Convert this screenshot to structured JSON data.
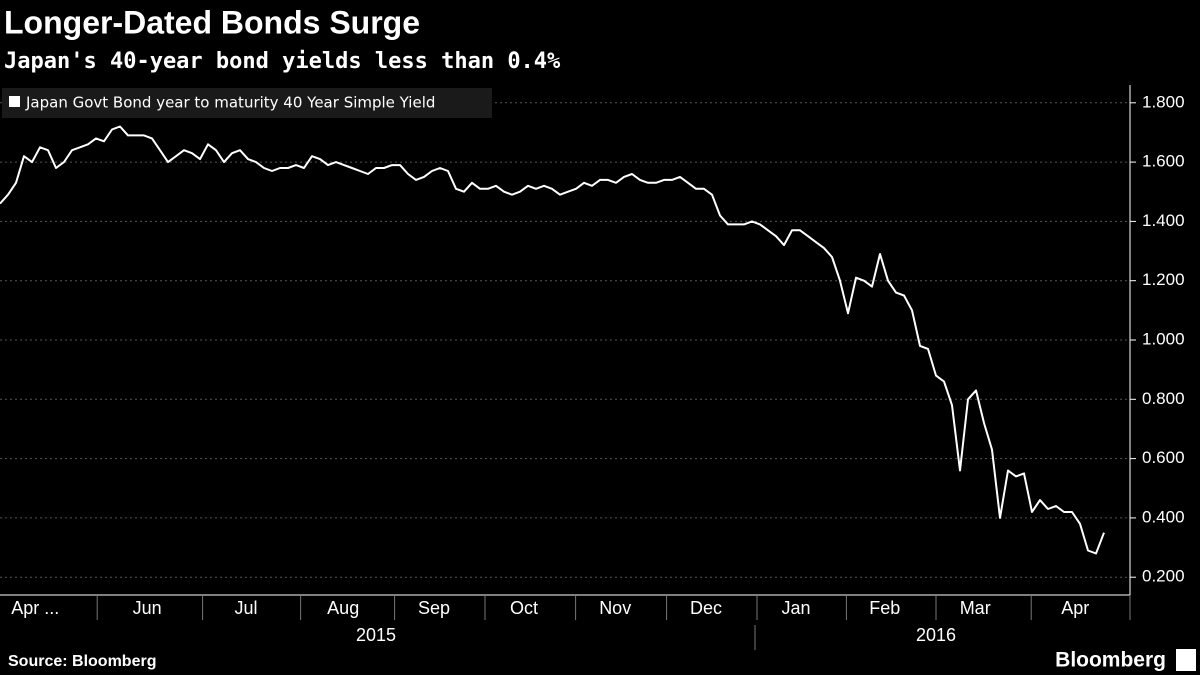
{
  "chart_data": {
    "type": "line",
    "title": "Longer-Dated Bonds Surge",
    "subtitle": "Japan's 40-year bond yields less than 0.4%",
    "source": "Source: Bloomberg",
    "brand": "Bloomberg",
    "legend": "top-left",
    "grid": true,
    "ylim": [
      0.14,
      1.86
    ],
    "yticks": [
      {
        "value": 0.2,
        "label": "0.200"
      },
      {
        "value": 0.4,
        "label": "0.400"
      },
      {
        "value": 0.6,
        "label": "0.600"
      },
      {
        "value": 0.8,
        "label": "0.800"
      },
      {
        "value": 1.0,
        "label": "1.000"
      },
      {
        "value": 1.2,
        "label": "1.200"
      },
      {
        "value": 1.4,
        "label": "1.400"
      },
      {
        "value": 1.6,
        "label": "1.600"
      },
      {
        "value": 1.8,
        "label": "1.800"
      }
    ],
    "xlim": [
      0,
      141.25
    ],
    "xticks": [
      {
        "value": 4.4,
        "label": "Apr ..."
      },
      {
        "value": 18.4,
        "label": "Jun"
      },
      {
        "value": 30.75,
        "label": "Jul"
      },
      {
        "value": 42.9,
        "label": "Aug"
      },
      {
        "value": 54.25,
        "label": "Sep"
      },
      {
        "value": 65.5,
        "label": "Oct"
      },
      {
        "value": 76.9,
        "label": "Nov"
      },
      {
        "value": 88.25,
        "label": "Dec"
      },
      {
        "value": 99.5,
        "label": "Jan"
      },
      {
        "value": 110.6,
        "label": "Feb"
      },
      {
        "value": 121.9,
        "label": "Mar"
      },
      {
        "value": 134.4,
        "label": "Apr"
      }
    ],
    "years": [
      {
        "value": 47,
        "label": "2015"
      },
      {
        "value": 117,
        "label": "2016"
      }
    ],
    "series": [
      {
        "name": "Japan Govt Bond year to maturity 40 Year Simple Yield",
        "color": "#ffffff",
        "values": [
          1.46,
          1.49,
          1.53,
          1.62,
          1.6,
          1.65,
          1.64,
          1.58,
          1.6,
          1.64,
          1.65,
          1.66,
          1.68,
          1.67,
          1.71,
          1.72,
          1.69,
          1.69,
          1.69,
          1.68,
          1.64,
          1.6,
          1.62,
          1.64,
          1.63,
          1.61,
          1.66,
          1.64,
          1.6,
          1.63,
          1.64,
          1.61,
          1.6,
          1.58,
          1.57,
          1.58,
          1.58,
          1.59,
          1.58,
          1.62,
          1.61,
          1.59,
          1.6,
          1.59,
          1.58,
          1.57,
          1.56,
          1.58,
          1.58,
          1.59,
          1.59,
          1.56,
          1.54,
          1.55,
          1.57,
          1.58,
          1.57,
          1.51,
          1.5,
          1.53,
          1.51,
          1.51,
          1.52,
          1.5,
          1.49,
          1.5,
          1.52,
          1.51,
          1.52,
          1.51,
          1.49,
          1.5,
          1.51,
          1.53,
          1.52,
          1.54,
          1.54,
          1.53,
          1.55,
          1.56,
          1.54,
          1.53,
          1.53,
          1.54,
          1.54,
          1.55,
          1.53,
          1.51,
          1.51,
          1.49,
          1.42,
          1.39,
          1.39,
          1.39,
          1.4,
          1.39,
          1.37,
          1.35,
          1.32,
          1.37,
          1.37,
          1.35,
          1.33,
          1.31,
          1.28,
          1.2,
          1.09,
          1.21,
          1.2,
          1.18,
          1.29,
          1.2,
          1.16,
          1.15,
          1.1,
          0.98,
          0.97,
          0.88,
          0.86,
          0.78,
          0.56,
          0.8,
          0.83,
          0.72,
          0.63,
          0.4,
          0.56,
          0.54,
          0.55,
          0.42,
          0.46,
          0.43,
          0.44,
          0.42,
          0.42,
          0.38,
          0.29,
          0.28,
          0.35
        ]
      }
    ]
  }
}
